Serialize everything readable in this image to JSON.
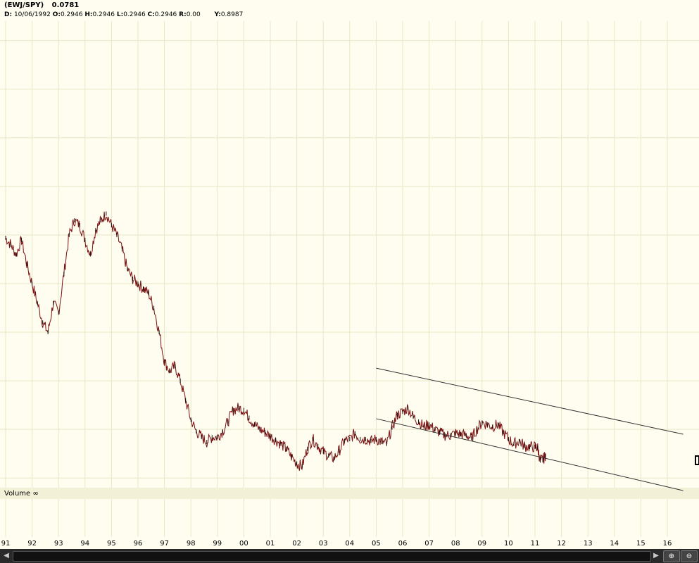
{
  "header": {
    "symbol": "(EWJ/SPY)",
    "last": "0.0781",
    "date_label": "D:",
    "date_value": "10/06/1992",
    "open_label": "O:",
    "open_value": "0.2946",
    "high_label": "H:",
    "high_value": "0.2946",
    "low_label": "L:",
    "low_value": "0.2946",
    "close_label": "C:",
    "close_value": "0.2946",
    "range_label": "R:",
    "range_value": "0.00",
    "y_label": "Y:",
    "y_value": "0.8987"
  },
  "volume_label": "Volume ∞",
  "colors": {
    "background": "#fefdf0",
    "grid": "#e9e6c6",
    "price": "#7a1010",
    "channel": "#333333",
    "footer": "#2a2a2a"
  },
  "chart_data": {
    "type": "line",
    "title": "(EWJ/SPY)",
    "xlabel": "",
    "ylabel": "",
    "x_tick_labels": [
      "91",
      "92",
      "93",
      "94",
      "95",
      "96",
      "97",
      "98",
      "99",
      "00",
      "01",
      "02",
      "03",
      "04",
      "05",
      "06",
      "07",
      "08",
      "09",
      "10",
      "11",
      "12",
      "13",
      "14",
      "15",
      "16"
    ],
    "x_range": [
      1991.0,
      2016.6
    ],
    "y_range": [
      0.04,
      0.52
    ],
    "grid": true,
    "series": [
      {
        "values_by_year": [
          [
            1991.0,
            0.297
          ],
          [
            1991.2,
            0.29
          ],
          [
            1991.4,
            0.28
          ],
          [
            1991.6,
            0.295
          ],
          [
            1991.8,
            0.27
          ],
          [
            1992.0,
            0.25
          ],
          [
            1992.2,
            0.23
          ],
          [
            1992.4,
            0.21
          ],
          [
            1992.6,
            0.2
          ],
          [
            1992.8,
            0.23
          ],
          [
            1993.0,
            0.22
          ],
          [
            1993.2,
            0.26
          ],
          [
            1993.4,
            0.3
          ],
          [
            1993.6,
            0.315
          ],
          [
            1993.8,
            0.31
          ],
          [
            1994.0,
            0.295
          ],
          [
            1994.2,
            0.28
          ],
          [
            1994.4,
            0.305
          ],
          [
            1994.6,
            0.315
          ],
          [
            1994.8,
            0.322
          ],
          [
            1995.0,
            0.31
          ],
          [
            1995.2,
            0.3
          ],
          [
            1995.4,
            0.285
          ],
          [
            1995.6,
            0.265
          ],
          [
            1995.8,
            0.255
          ],
          [
            1996.0,
            0.25
          ],
          [
            1996.2,
            0.245
          ],
          [
            1996.4,
            0.24
          ],
          [
            1996.6,
            0.225
          ],
          [
            1996.8,
            0.2
          ],
          [
            1997.0,
            0.17
          ],
          [
            1997.2,
            0.16
          ],
          [
            1997.4,
            0.165
          ],
          [
            1997.6,
            0.15
          ],
          [
            1997.8,
            0.13
          ],
          [
            1998.0,
            0.11
          ],
          [
            1998.2,
            0.098
          ],
          [
            1998.4,
            0.092
          ],
          [
            1998.6,
            0.087
          ],
          [
            1998.8,
            0.092
          ],
          [
            1999.0,
            0.092
          ],
          [
            1999.2,
            0.098
          ],
          [
            1999.4,
            0.108
          ],
          [
            1999.6,
            0.12
          ],
          [
            1999.8,
            0.122
          ],
          [
            2000.0,
            0.12
          ],
          [
            2000.2,
            0.112
          ],
          [
            2000.4,
            0.105
          ],
          [
            2000.6,
            0.1
          ],
          [
            2000.8,
            0.097
          ],
          [
            2001.0,
            0.093
          ],
          [
            2001.2,
            0.089
          ],
          [
            2001.4,
            0.085
          ],
          [
            2001.6,
            0.08
          ],
          [
            2001.8,
            0.072
          ],
          [
            2002.0,
            0.065
          ],
          [
            2002.2,
            0.062
          ],
          [
            2002.4,
            0.08
          ],
          [
            2002.6,
            0.09
          ],
          [
            2002.8,
            0.083
          ],
          [
            2003.0,
            0.077
          ],
          [
            2003.2,
            0.073
          ],
          [
            2003.4,
            0.07
          ],
          [
            2003.6,
            0.078
          ],
          [
            2003.8,
            0.088
          ],
          [
            2004.0,
            0.09
          ],
          [
            2004.2,
            0.096
          ],
          [
            2004.4,
            0.09
          ],
          [
            2004.6,
            0.09
          ],
          [
            2004.8,
            0.088
          ],
          [
            2005.0,
            0.09
          ],
          [
            2005.2,
            0.087
          ],
          [
            2005.4,
            0.085
          ],
          [
            2005.6,
            0.102
          ],
          [
            2005.8,
            0.115
          ],
          [
            2006.0,
            0.118
          ],
          [
            2006.2,
            0.122
          ],
          [
            2006.4,
            0.113
          ],
          [
            2006.6,
            0.108
          ],
          [
            2006.8,
            0.103
          ],
          [
            2007.0,
            0.105
          ],
          [
            2007.2,
            0.1
          ],
          [
            2007.4,
            0.097
          ],
          [
            2007.6,
            0.094
          ],
          [
            2007.8,
            0.094
          ],
          [
            2008.0,
            0.096
          ],
          [
            2008.2,
            0.095
          ],
          [
            2008.4,
            0.094
          ],
          [
            2008.6,
            0.091
          ],
          [
            2008.8,
            0.1
          ],
          [
            2009.0,
            0.107
          ],
          [
            2009.2,
            0.105
          ],
          [
            2009.4,
            0.103
          ],
          [
            2009.6,
            0.105
          ],
          [
            2009.8,
            0.097
          ],
          [
            2010.0,
            0.09
          ],
          [
            2010.2,
            0.085
          ],
          [
            2010.4,
            0.088
          ],
          [
            2010.6,
            0.083
          ],
          [
            2010.8,
            0.082
          ],
          [
            2011.0,
            0.082
          ],
          [
            2011.1,
            0.081
          ],
          [
            2011.2,
            0.068
          ],
          [
            2011.3,
            0.069
          ],
          [
            2011.4,
            0.073
          ]
        ]
      }
    ],
    "trend_lines": [
      {
        "from": [
          2005.0,
          0.163
        ],
        "to": [
          2016.6,
          0.095
        ]
      },
      {
        "from": [
          2005.0,
          0.111
        ],
        "to": [
          2016.6,
          0.037
        ]
      }
    ]
  }
}
